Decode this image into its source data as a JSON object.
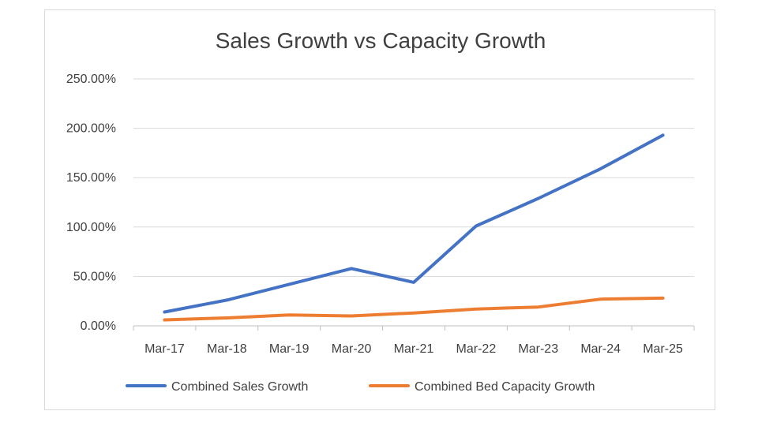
{
  "chart_data": {
    "type": "line",
    "title": "Sales Growth vs Capacity Growth",
    "xlabel": "",
    "ylabel": "",
    "categories": [
      "Mar-17",
      "Mar-18",
      "Mar-19",
      "Mar-20",
      "Mar-21",
      "Mar-22",
      "Mar-23",
      "Mar-24",
      "Mar-25"
    ],
    "ylim": [
      0,
      250
    ],
    "yticks": [
      0,
      50,
      100,
      150,
      200,
      250
    ],
    "ytick_labels": [
      "0.00%",
      "50.00%",
      "100.00%",
      "150.00%",
      "200.00%",
      "250.00%"
    ],
    "grid": true,
    "legend_position": "bottom",
    "series": [
      {
        "name": "Combined Sales Growth",
        "color": "#4472c4",
        "values": [
          14,
          26,
          42,
          58,
          44,
          101,
          129,
          159,
          193
        ]
      },
      {
        "name": "Combined Bed Capacity Growth",
        "color": "#ed7d31",
        "values": [
          6,
          8,
          11,
          10,
          13,
          17,
          19,
          27,
          28
        ]
      }
    ]
  }
}
